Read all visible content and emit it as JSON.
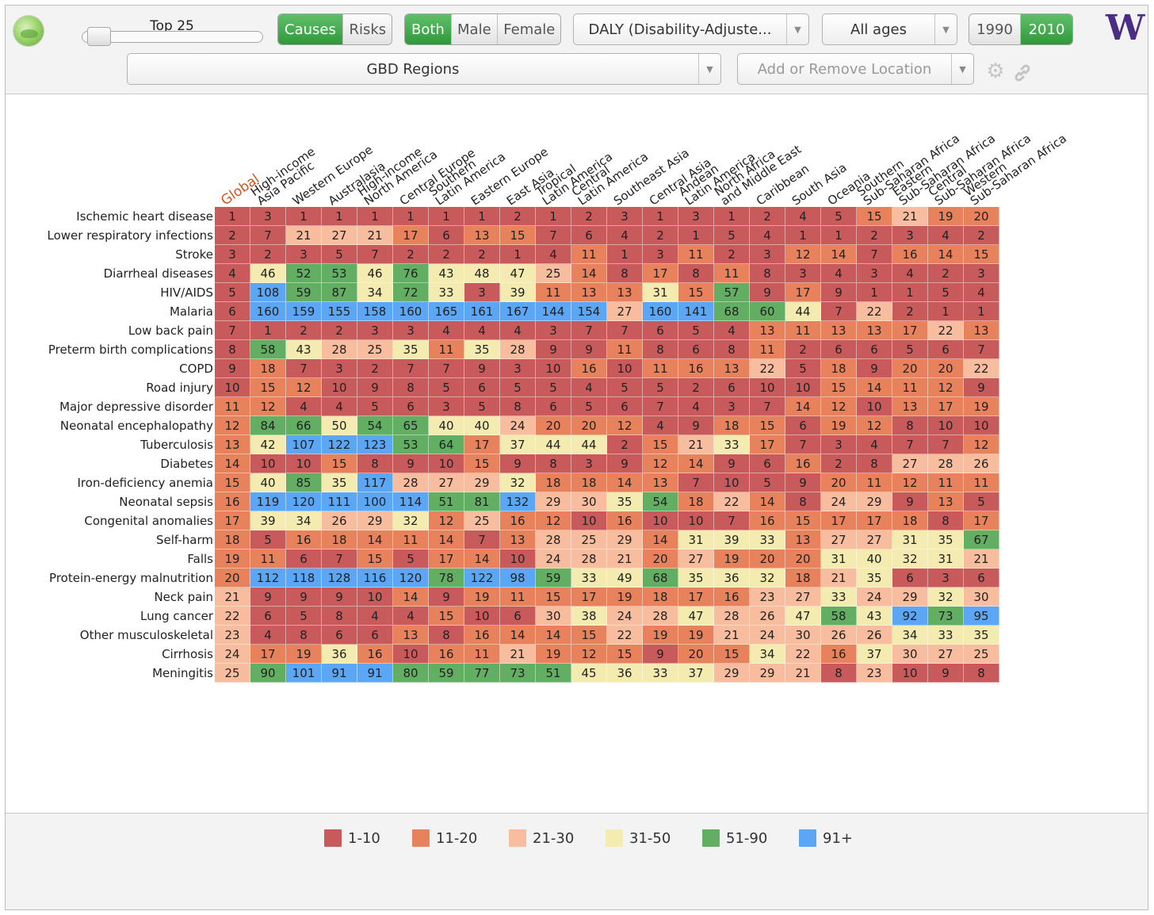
{
  "toolbar": {
    "slider_label": "Top 25",
    "view_toggle": [
      {
        "label": "Causes",
        "active": true
      },
      {
        "label": "Risks",
        "active": false
      }
    ],
    "sex_toggle": [
      {
        "label": "Both",
        "active": true
      },
      {
        "label": "Male",
        "active": false
      },
      {
        "label": "Female",
        "active": false
      }
    ],
    "metric_dropdown": "DALY (Disability-Adjuste...",
    "age_dropdown": "All ages",
    "year_toggle": [
      {
        "label": "1990",
        "active": false
      },
      {
        "label": "2010",
        "active": true
      }
    ],
    "region_dropdown": "GBD Regions",
    "location_placeholder": "Add or Remove Location",
    "accent_color": "#3aa346",
    "uw_logo_letter": "W",
    "uw_color": "#4b2e83"
  },
  "table": {
    "columns": [
      "Global",
      "High-income\nAsia Pacific",
      "Western Europe",
      "Australasia",
      "High-income\nNorth America",
      "Central Europe",
      "Southern\nLatin America",
      "Eastern Europe",
      "East Asia",
      "Tropical\nLatin America",
      "Central\nLatin America",
      "Southeast Asia",
      "Central Asia",
      "Andean\nLatin America",
      "North Africa\nand Middle East",
      "Caribbean",
      "South Asia",
      "Oceania",
      "Southern\nSub-Saharan Africa",
      "Eastern\nSub-Saharan Africa",
      "Central\nSub-Saharan Africa",
      "Western\nSub-Saharan Africa"
    ],
    "rows": [
      {
        "cause": "Ischemic heart disease",
        "ranks": [
          1,
          3,
          1,
          1,
          1,
          1,
          1,
          1,
          2,
          1,
          2,
          3,
          1,
          3,
          1,
          2,
          4,
          5,
          15,
          21,
          19,
          20
        ]
      },
      {
        "cause": "Lower respiratory infections",
        "ranks": [
          2,
          7,
          21,
          27,
          21,
          17,
          6,
          13,
          15,
          7,
          6,
          4,
          2,
          1,
          5,
          4,
          1,
          1,
          2,
          3,
          4,
          2
        ]
      },
      {
        "cause": "Stroke",
        "ranks": [
          3,
          2,
          3,
          5,
          7,
          2,
          2,
          2,
          1,
          4,
          11,
          1,
          3,
          11,
          2,
          3,
          12,
          14,
          7,
          16,
          14,
          15
        ]
      },
      {
        "cause": "Diarrheal diseases",
        "ranks": [
          4,
          46,
          52,
          53,
          46,
          76,
          43,
          48,
          47,
          25,
          14,
          8,
          17,
          8,
          11,
          8,
          3,
          4,
          3,
          4,
          2,
          3
        ]
      },
      {
        "cause": "HIV/AIDS",
        "ranks": [
          5,
          108,
          59,
          87,
          34,
          72,
          33,
          3,
          39,
          11,
          13,
          13,
          31,
          15,
          57,
          9,
          17,
          9,
          1,
          1,
          5,
          4
        ]
      },
      {
        "cause": "Malaria",
        "ranks": [
          6,
          160,
          159,
          155,
          158,
          160,
          165,
          161,
          167,
          144,
          154,
          27,
          160,
          141,
          68,
          60,
          44,
          7,
          22,
          2,
          1,
          1
        ]
      },
      {
        "cause": "Low back pain",
        "ranks": [
          7,
          1,
          2,
          2,
          3,
          3,
          4,
          4,
          4,
          3,
          7,
          7,
          6,
          5,
          4,
          13,
          11,
          13,
          13,
          17,
          22,
          13
        ]
      },
      {
        "cause": "Preterm birth complications",
        "ranks": [
          8,
          58,
          43,
          28,
          25,
          35,
          11,
          35,
          28,
          9,
          9,
          11,
          8,
          6,
          8,
          11,
          2,
          6,
          6,
          5,
          6,
          7
        ]
      },
      {
        "cause": "COPD",
        "ranks": [
          9,
          18,
          7,
          3,
          2,
          7,
          7,
          9,
          3,
          10,
          16,
          10,
          11,
          16,
          13,
          22,
          5,
          18,
          9,
          20,
          20,
          22
        ]
      },
      {
        "cause": "Road injury",
        "ranks": [
          10,
          15,
          12,
          10,
          9,
          8,
          5,
          6,
          5,
          5,
          4,
          5,
          5,
          2,
          6,
          10,
          10,
          15,
          14,
          11,
          12,
          9
        ]
      },
      {
        "cause": "Major depressive disorder",
        "ranks": [
          11,
          12,
          4,
          4,
          5,
          6,
          3,
          5,
          8,
          6,
          5,
          6,
          7,
          4,
          3,
          7,
          14,
          12,
          10,
          13,
          17,
          19
        ]
      },
      {
        "cause": "Neonatal encephalopathy",
        "ranks": [
          12,
          84,
          66,
          50,
          54,
          65,
          40,
          40,
          24,
          20,
          20,
          12,
          4,
          9,
          18,
          15,
          6,
          19,
          12,
          8,
          10,
          10
        ]
      },
      {
        "cause": "Tuberculosis",
        "ranks": [
          13,
          42,
          107,
          122,
          123,
          53,
          64,
          17,
          37,
          44,
          44,
          2,
          15,
          21,
          33,
          17,
          7,
          3,
          4,
          7,
          7,
          12
        ]
      },
      {
        "cause": "Diabetes",
        "ranks": [
          14,
          10,
          10,
          15,
          8,
          9,
          10,
          15,
          9,
          8,
          3,
          9,
          12,
          14,
          9,
          6,
          16,
          2,
          8,
          27,
          28,
          26
        ]
      },
      {
        "cause": "Iron-deficiency anemia",
        "ranks": [
          15,
          40,
          85,
          35,
          117,
          28,
          27,
          29,
          32,
          18,
          18,
          14,
          13,
          7,
          10,
          5,
          9,
          20,
          11,
          12,
          11,
          11
        ]
      },
      {
        "cause": "Neonatal sepsis",
        "ranks": [
          16,
          119,
          120,
          111,
          100,
          114,
          51,
          81,
          132,
          29,
          30,
          35,
          54,
          18,
          22,
          14,
          8,
          24,
          29,
          9,
          13,
          5
        ]
      },
      {
        "cause": "Congenital anomalies",
        "ranks": [
          17,
          39,
          34,
          26,
          29,
          32,
          12,
          25,
          16,
          12,
          10,
          16,
          10,
          10,
          7,
          16,
          15,
          17,
          17,
          18,
          8,
          17
        ]
      },
      {
        "cause": "Self-harm",
        "ranks": [
          18,
          5,
          16,
          18,
          14,
          11,
          14,
          7,
          13,
          28,
          25,
          29,
          14,
          31,
          39,
          33,
          13,
          27,
          27,
          31,
          35,
          67
        ]
      },
      {
        "cause": "Falls",
        "ranks": [
          19,
          11,
          6,
          7,
          15,
          5,
          17,
          14,
          10,
          24,
          28,
          21,
          20,
          27,
          19,
          20,
          20,
          31,
          40,
          32,
          31,
          21
        ]
      },
      {
        "cause": "Protein-energy malnutrition",
        "ranks": [
          20,
          112,
          118,
          128,
          116,
          120,
          78,
          122,
          98,
          59,
          33,
          49,
          68,
          35,
          36,
          32,
          18,
          21,
          35,
          6,
          3,
          6
        ]
      },
      {
        "cause": "Neck pain",
        "ranks": [
          21,
          9,
          9,
          9,
          10,
          14,
          9,
          19,
          11,
          15,
          17,
          19,
          18,
          17,
          16,
          23,
          27,
          33,
          24,
          29,
          32,
          30
        ]
      },
      {
        "cause": "Lung cancer",
        "ranks": [
          22,
          6,
          5,
          8,
          4,
          4,
          15,
          10,
          6,
          30,
          38,
          24,
          28,
          47,
          28,
          26,
          47,
          58,
          43,
          92,
          73,
          95
        ]
      },
      {
        "cause": "Other musculoskeletal",
        "ranks": [
          23,
          4,
          8,
          6,
          6,
          13,
          8,
          16,
          14,
          14,
          15,
          22,
          19,
          19,
          21,
          24,
          30,
          26,
          26,
          34,
          33,
          35
        ]
      },
      {
        "cause": "Cirrhosis",
        "ranks": [
          24,
          17,
          19,
          36,
          16,
          10,
          16,
          11,
          21,
          19,
          12,
          15,
          9,
          20,
          15,
          34,
          22,
          16,
          37,
          30,
          27,
          25
        ]
      },
      {
        "cause": "Meningitis",
        "ranks": [
          25,
          90,
          101,
          91,
          91,
          80,
          59,
          77,
          73,
          51,
          45,
          36,
          33,
          37,
          29,
          29,
          21,
          8,
          23,
          10,
          9,
          8
        ]
      }
    ]
  },
  "legend": [
    {
      "label": "1-10",
      "color": "#c85a5c",
      "min": 1,
      "max": 10
    },
    {
      "label": "11-20",
      "color": "#e8825c",
      "min": 11,
      "max": 20
    },
    {
      "label": "21-30",
      "color": "#f8bc9e",
      "min": 21,
      "max": 30
    },
    {
      "label": "31-50",
      "color": "#f3ebaf",
      "min": 31,
      "max": 50
    },
    {
      "label": "51-90",
      "color": "#62ae62",
      "min": 51,
      "max": 90
    },
    {
      "label": "91+",
      "color": "#5ba6f5",
      "min": 91,
      "max": 9999
    }
  ]
}
